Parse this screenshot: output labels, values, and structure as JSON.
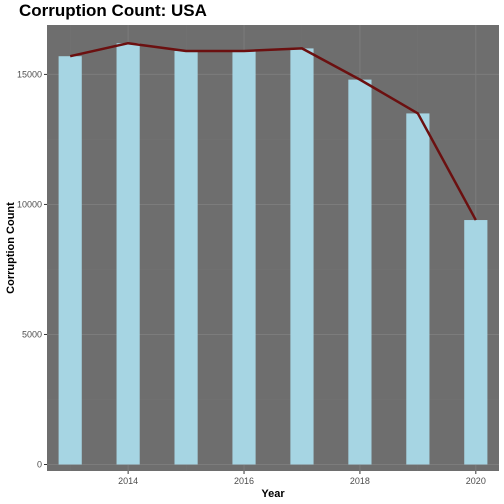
{
  "chart_data": {
    "type": "bar",
    "title": "Corruption Count: USA",
    "xlabel": "Year",
    "ylabel": "Corruption Count",
    "x": [
      2013,
      2014,
      2015,
      2016,
      2017,
      2018,
      2019,
      2020
    ],
    "values": [
      15700,
      16200,
      15900,
      15900,
      16000,
      14800,
      13500,
      9400
    ],
    "line_values": [
      15700,
      16200,
      15900,
      15900,
      16000,
      14800,
      13500,
      9400
    ],
    "xlim": [
      2012.6,
      2020.4
    ],
    "ylim": [
      -250,
      16900
    ],
    "x_ticks": [
      2014,
      2016,
      2018,
      2020
    ],
    "y_ticks": [
      0,
      5000,
      10000,
      15000
    ],
    "grid": true,
    "colors": {
      "bar": "#a6d5e3",
      "line": "#6b1010",
      "panel": "#6e6e6e",
      "grid_major": "#7c7c7c",
      "grid_minor": "#737373"
    }
  }
}
